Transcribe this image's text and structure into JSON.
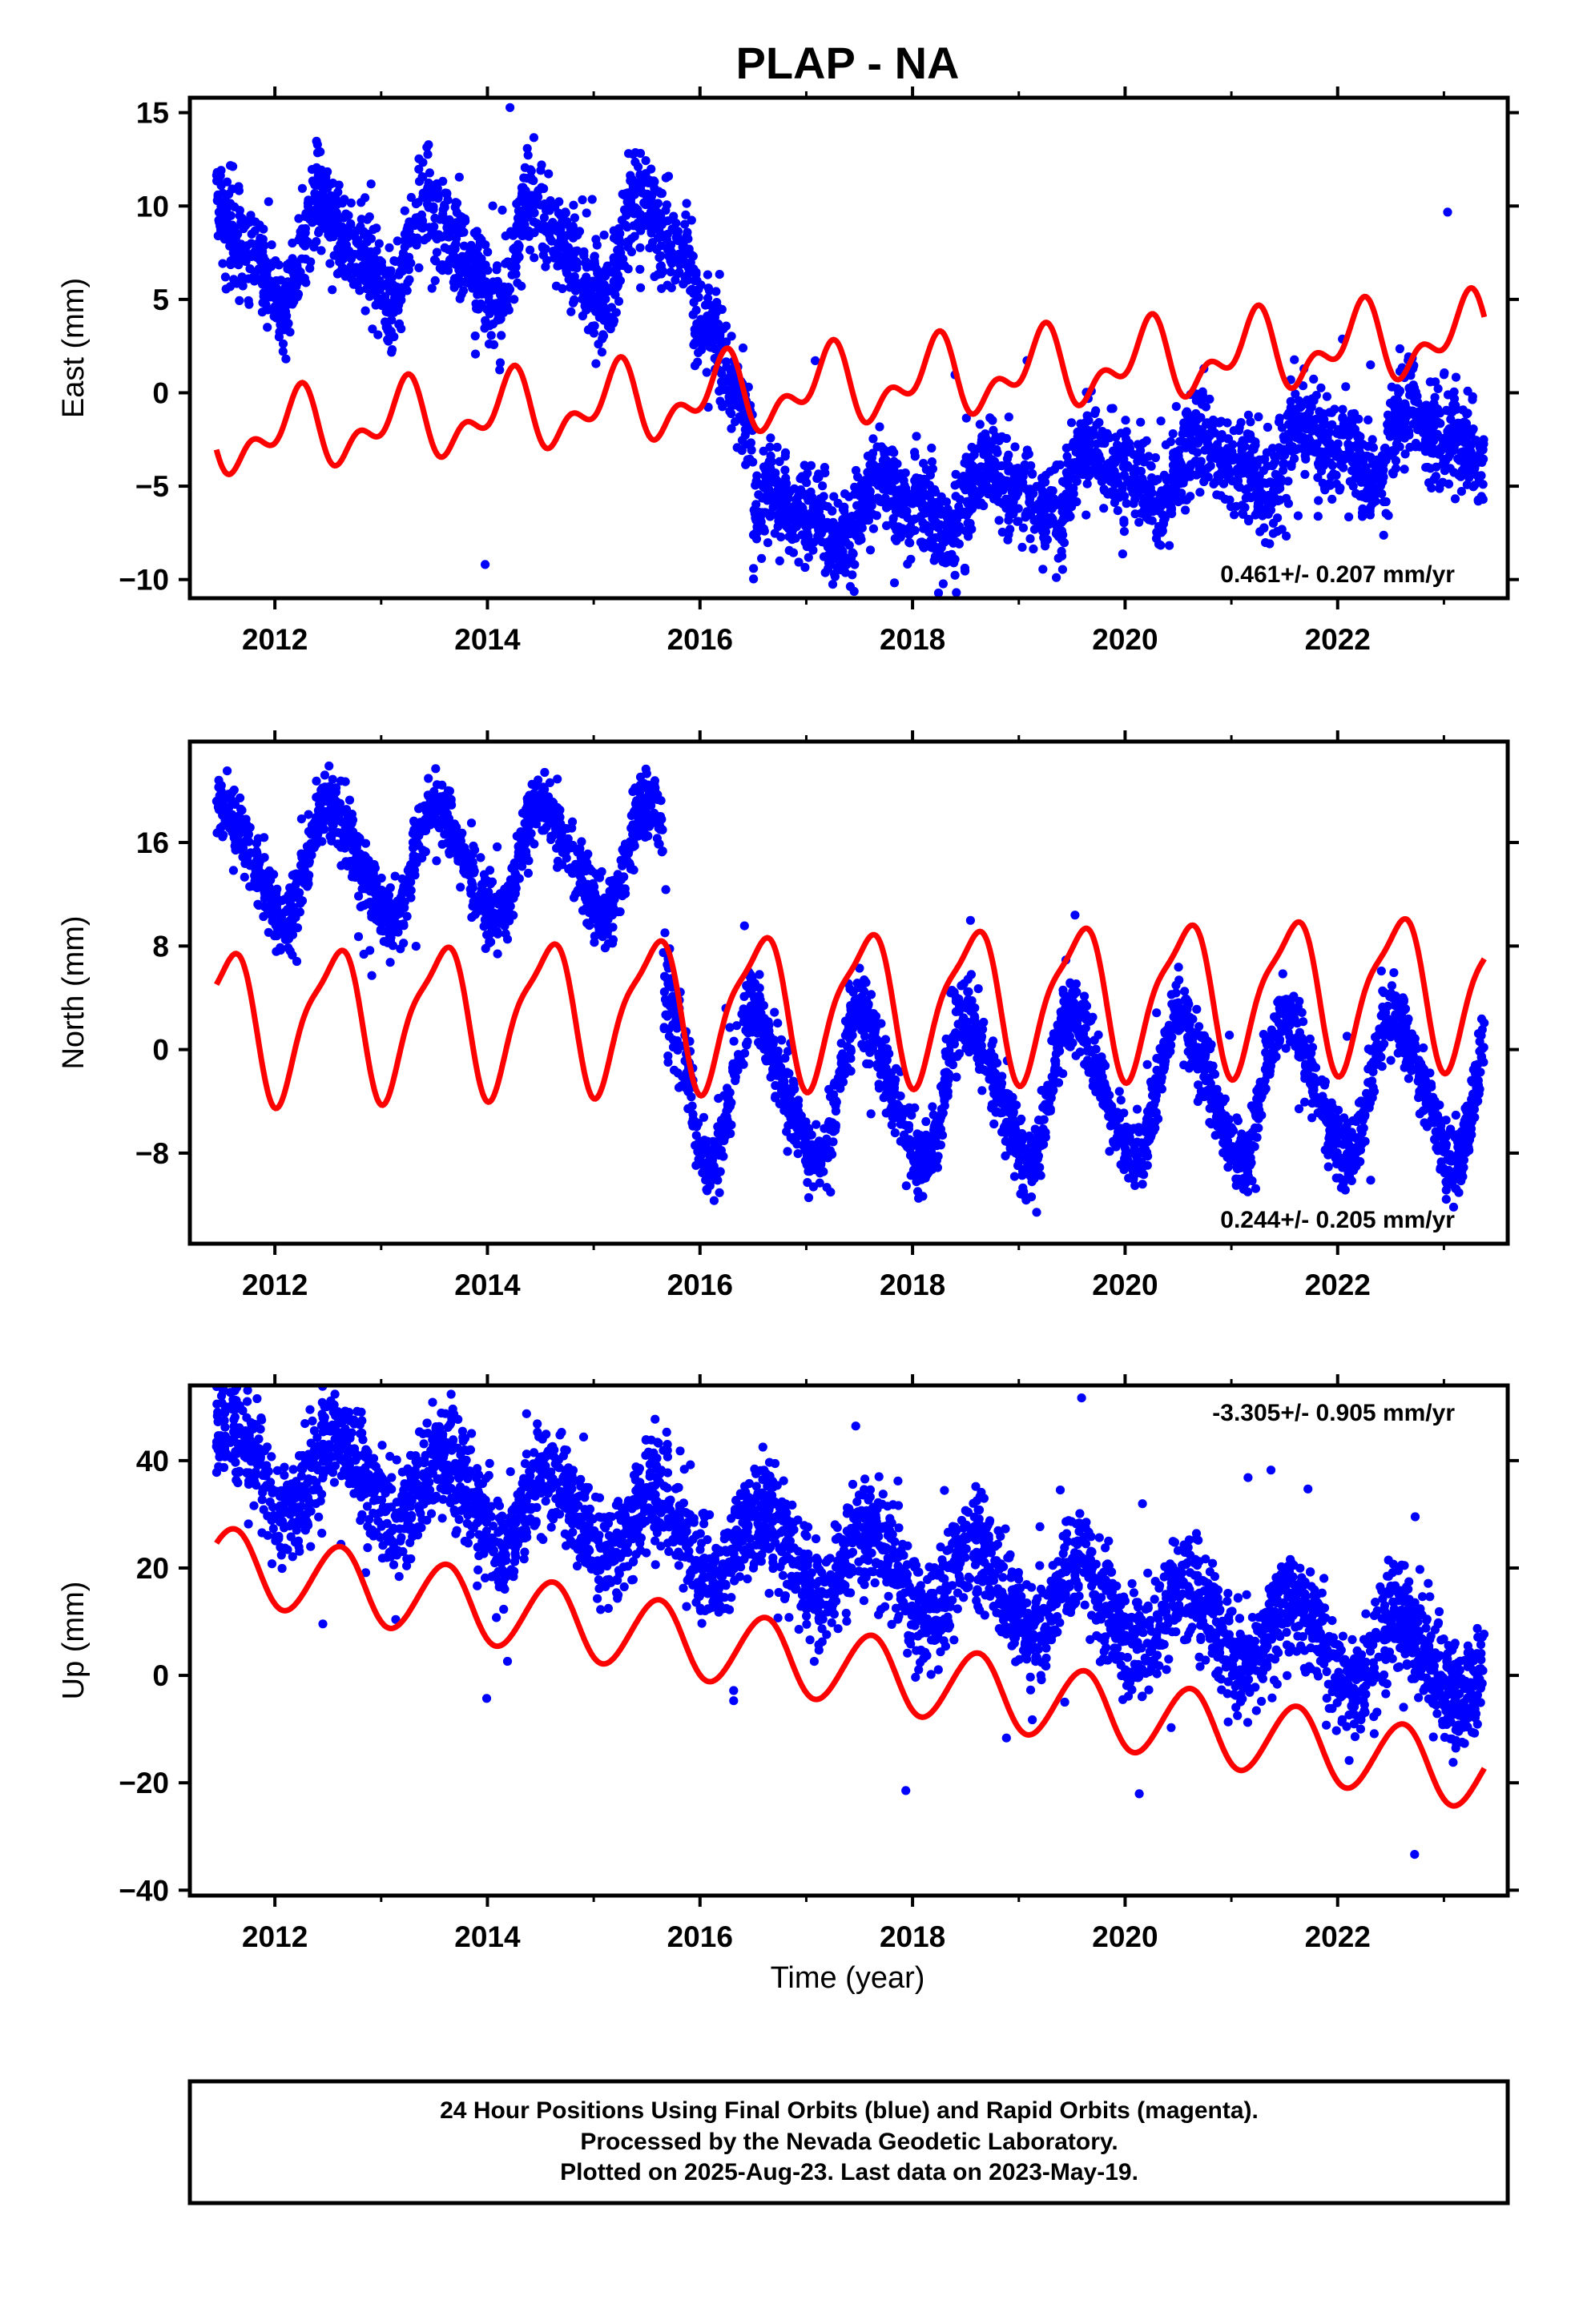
{
  "title": "PLAP - NA",
  "x_axis_label": "Time (year)",
  "footer": {
    "line1": "24 Hour Positions Using Final Orbits (blue) and Rapid Orbits (magenta).",
    "line2": "Processed by the Nevada Geodetic Laboratory.",
    "line3": "Plotted on 2025-Aug-23. Last data on 2023-May-19."
  },
  "colors": {
    "final_orbits": "#0000ff",
    "fit_curve": "#ff0000",
    "frame": "#000000"
  },
  "chart_data": [
    {
      "type": "scatter",
      "name": "east",
      "ylabel": "East (mm)",
      "xlim": [
        2011.2,
        2023.6
      ],
      "ylim": [
        -11,
        15.8
      ],
      "x_ticks": [
        2012,
        2014,
        2016,
        2018,
        2020,
        2022
      ],
      "y_ticks": [
        -10,
        -5,
        0,
        5,
        10,
        15
      ],
      "y_tick_labels": [
        "−10",
        "−5",
        "0",
        "5",
        "10",
        "15"
      ],
      "rate_text": "0.461+/- 0.207 mm/yr",
      "rate_position": "bottom-right",
      "grid": false,
      "data_x_range": [
        2011.45,
        2023.38
      ],
      "segments": [
        {
          "x_start": 2011.45,
          "x_end": 2015.95,
          "mean": 7.6,
          "slope": 0.05,
          "annual_amp": 2.4,
          "semi_amp": 1.0,
          "phase": 0.25,
          "noise": 1.3
        },
        {
          "x_start": 2015.95,
          "x_end": 2016.5,
          "mean": 1.0,
          "slope": -12.0,
          "annual_amp": 0.8,
          "semi_amp": 0.3,
          "phase": 0.0,
          "noise": 1.4
        },
        {
          "x_start": 2016.5,
          "x_end": 2023.38,
          "mean": -4.5,
          "slope": 0.75,
          "annual_amp": 1.4,
          "semi_amp": 0.7,
          "phase": 0.5,
          "noise": 1.3
        }
      ],
      "fit": {
        "x_start": 2011.45,
        "x_end": 2023.38,
        "offset_at_2011_45": -2.4,
        "rate": 0.461,
        "annual_amp": 1.6,
        "annual_phase": 0.95,
        "semi_amp": 1.1,
        "semi_phase": 0.15
      }
    },
    {
      "type": "scatter",
      "name": "north",
      "ylabel": "North (mm)",
      "xlim": [
        2011.2,
        2023.6
      ],
      "ylim": [
        -15,
        23.8
      ],
      "x_ticks": [
        2012,
        2014,
        2016,
        2018,
        2020,
        2022
      ],
      "y_ticks": [
        -8,
        0,
        8,
        16
      ],
      "y_tick_labels": [
        "−8",
        "0",
        "8",
        "16"
      ],
      "rate_text": "0.244+/- 0.205 mm/yr",
      "rate_position": "bottom-right",
      "grid": false,
      "data_x_range": [
        2011.45,
        2023.38
      ],
      "segments": [
        {
          "x_start": 2011.45,
          "x_end": 2015.65,
          "mean": 14.5,
          "slope": 0.1,
          "annual_amp": 4.2,
          "semi_amp": 0.8,
          "phase": 0.3,
          "noise": 1.3
        },
        {
          "x_start": 2015.65,
          "x_end": 2015.95,
          "mean": 2.0,
          "slope": -35.0,
          "annual_amp": 1.0,
          "semi_amp": 0.3,
          "phase": 0.0,
          "noise": 2.0
        },
        {
          "x_start": 2015.95,
          "x_end": 2023.38,
          "mean": -3.0,
          "slope": 0.0,
          "annual_amp": 5.5,
          "semi_amp": 0.9,
          "phase": 0.3,
          "noise": 1.4
        }
      ],
      "fit": {
        "x_start": 2011.45,
        "x_end": 2023.38,
        "offset_at_2011_45": 2.0,
        "rate": 0.244,
        "annual_amp": 5.5,
        "annual_phase": 0.3,
        "semi_amp": 1.5,
        "semi_phase": 0.1
      }
    },
    {
      "type": "scatter",
      "name": "up",
      "ylabel": "Up (mm)",
      "xlim": [
        2011.2,
        2023.6
      ],
      "ylim": [
        -41,
        54
      ],
      "x_ticks": [
        2012,
        2014,
        2016,
        2018,
        2020,
        2022
      ],
      "y_ticks": [
        -40,
        -20,
        0,
        20,
        40
      ],
      "y_tick_labels": [
        "−40",
        "−20",
        "0",
        "20",
        "40"
      ],
      "rate_text": "-3.305+/- 0.905 mm/yr",
      "rate_position": "top-right",
      "grid": false,
      "data_x_range": [
        2011.45,
        2023.38
      ],
      "segments": [
        {
          "x_start": 2011.45,
          "x_end": 2023.38,
          "mean": 21.0,
          "slope": -3.305,
          "annual_amp": 7.0,
          "semi_amp": 0.6,
          "phase": 0.35,
          "noise": 5.0
        }
      ],
      "fit": {
        "x_start": 2011.45,
        "x_end": 2023.38,
        "offset_at_2011_45": 21.0,
        "rate": -3.305,
        "annual_amp": 6.8,
        "annual_phase": 0.35,
        "semi_amp": 0.4,
        "semi_phase": 0.1
      }
    }
  ]
}
